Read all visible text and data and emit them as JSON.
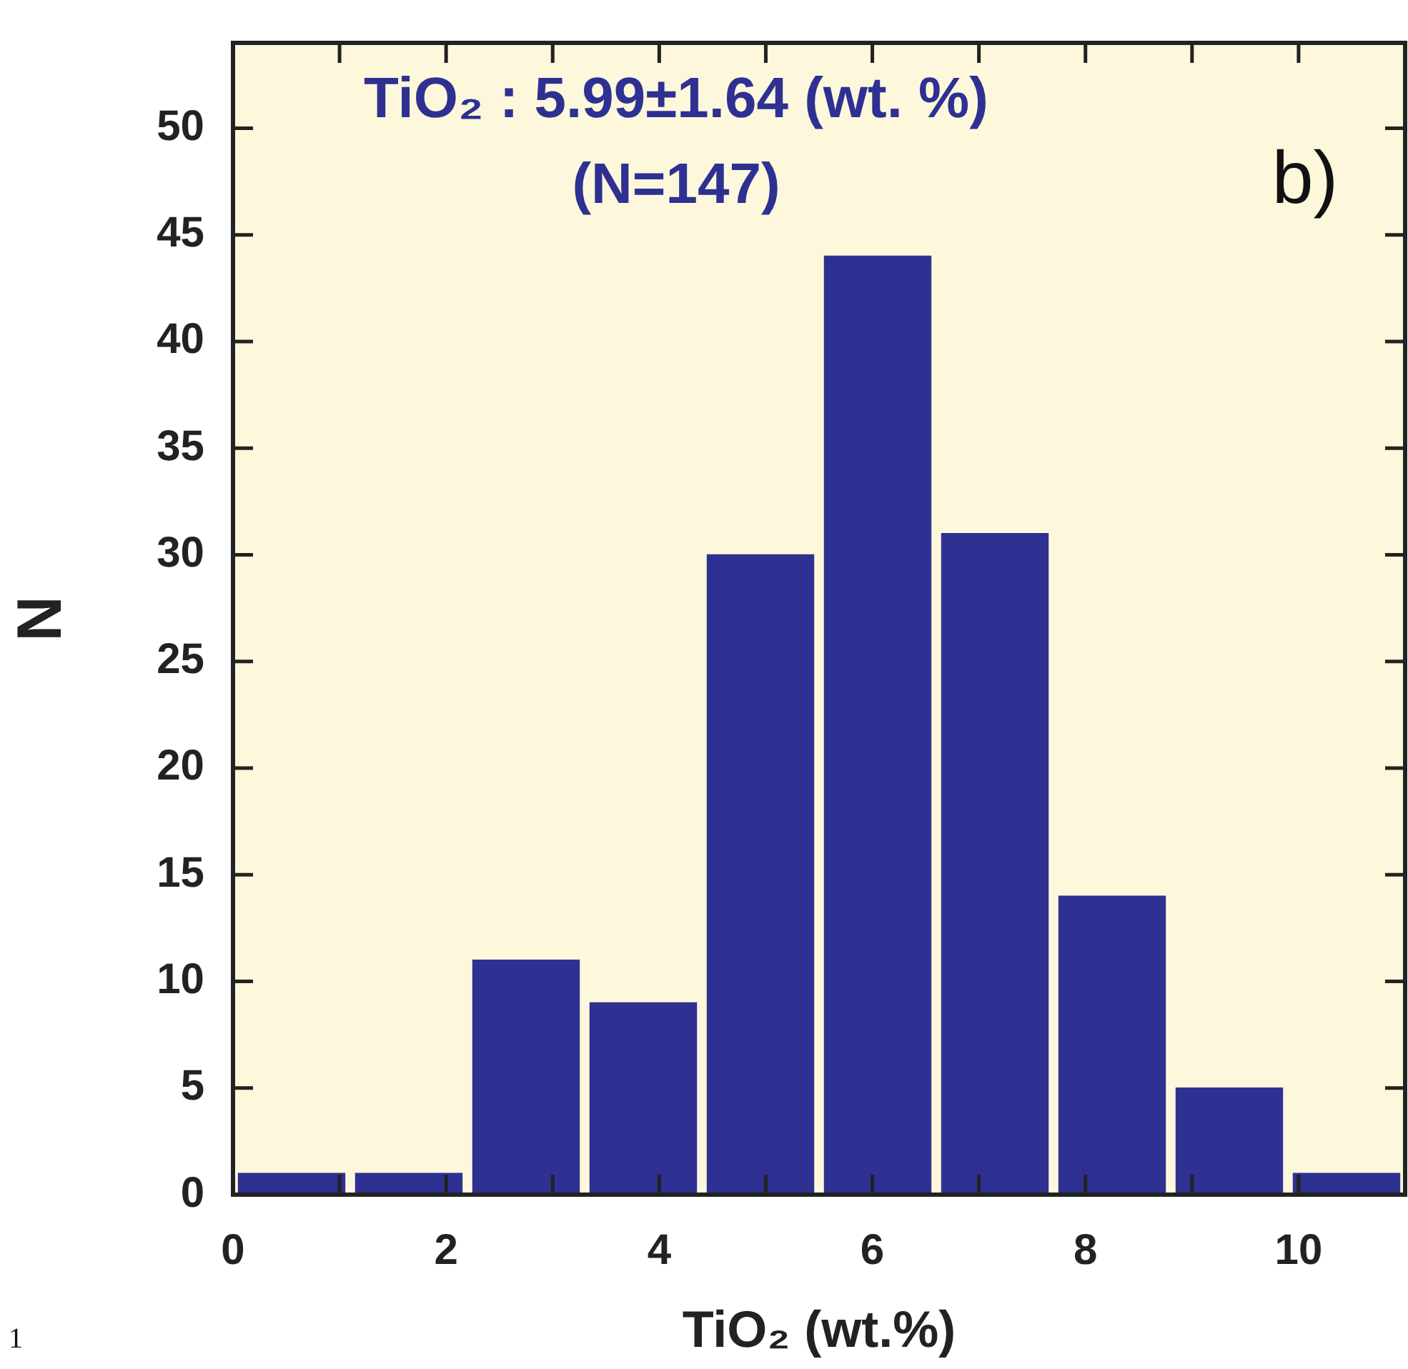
{
  "chart_data": {
    "type": "histogram",
    "xlabel": "TiO₂ (wt.%)",
    "ylabel": "N",
    "annotations": [
      "TiO₂ : 5.99±1.64 (wt. %)",
      "(N=147)",
      "b)",
      "1"
    ],
    "bins": [
      0,
      1.1,
      2.2,
      3.3,
      4.4,
      5.5,
      6.6,
      7.7,
      8.8,
      9.9,
      11
    ],
    "values": [
      1,
      1,
      11,
      9,
      30,
      44,
      31,
      14,
      5,
      1
    ],
    "color": "#2e3192",
    "xlim": [
      0,
      11
    ],
    "ylim": [
      0,
      54
    ],
    "xticks": [
      0,
      {
        "value": 1,
        "label": null
      },
      2,
      {
        "value": 3,
        "label": null
      },
      4,
      {
        "value": 5,
        "label": null
      },
      6,
      {
        "value": 7,
        "label": null
      },
      8,
      {
        "value": 9,
        "label": null
      },
      10
    ],
    "yticks": [
      0,
      5,
      10,
      15,
      20,
      25,
      30,
      35,
      40,
      45,
      50
    ],
    "grid": false,
    "legend": false
  }
}
